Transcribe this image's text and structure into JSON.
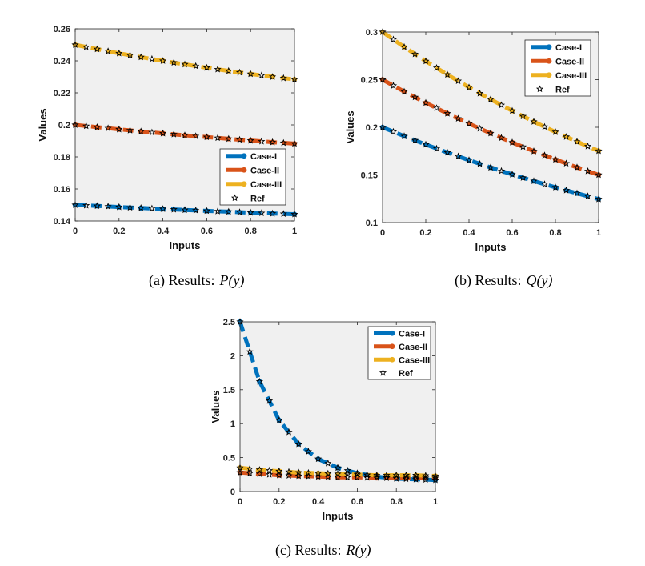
{
  "colors": {
    "case1": "#0072BD",
    "case2": "#D95319",
    "case3": "#EDB120",
    "ref": "#000000",
    "plot_bg": "#F0F0F0"
  },
  "legend_labels": [
    "Case-I",
    "Case-II",
    "Case-III",
    "Ref"
  ],
  "chart_data": [
    {
      "id": "P",
      "type": "line",
      "caption_prefix": "(a) Results:",
      "caption_fn": "P(y)",
      "xlabel": "Inputs",
      "ylabel": "Values",
      "xlim": [
        0,
        1
      ],
      "ylim": [
        0.14,
        0.26
      ],
      "xticks": [
        0,
        0.2,
        0.4,
        0.6,
        0.8,
        1
      ],
      "xtick_labels": [
        "0",
        "0.2",
        "0.4",
        "0.6",
        "0.8",
        "1"
      ],
      "yticks": [
        0.14,
        0.16,
        0.18,
        0.2,
        0.22,
        0.24,
        0.26
      ],
      "ytick_labels": [
        "0.14",
        "0.16",
        "0.18",
        "0.2",
        "0.22",
        "0.24",
        "0.26"
      ],
      "legend_position": "bottom-right",
      "ref_x": [
        0,
        0.05,
        0.1,
        0.15,
        0.2,
        0.25,
        0.3,
        0.35,
        0.4,
        0.45,
        0.5,
        0.55,
        0.6,
        0.65,
        0.7,
        0.75,
        0.8,
        0.85,
        0.9,
        0.95,
        1
      ],
      "series": [
        {
          "name": "Case-I",
          "x": [
            0,
            0.1,
            0.2,
            0.3,
            0.4,
            0.5,
            0.6,
            0.7,
            0.8,
            0.9,
            1
          ],
          "values": [
            0.15,
            0.1494,
            0.1487,
            0.1481,
            0.1475,
            0.1469,
            0.1463,
            0.1458,
            0.1452,
            0.1447,
            0.1442
          ]
        },
        {
          "name": "Case-II",
          "x": [
            0,
            0.1,
            0.2,
            0.3,
            0.4,
            0.5,
            0.6,
            0.7,
            0.8,
            0.9,
            1
          ],
          "values": [
            0.2,
            0.1986,
            0.1972,
            0.1959,
            0.1947,
            0.1935,
            0.1924,
            0.1913,
            0.1902,
            0.1892,
            0.1883
          ]
        },
        {
          "name": "Case-III",
          "x": [
            0,
            0.1,
            0.2,
            0.3,
            0.4,
            0.5,
            0.6,
            0.7,
            0.8,
            0.9,
            1
          ],
          "values": [
            0.25,
            0.2473,
            0.2447,
            0.2423,
            0.24,
            0.2378,
            0.2357,
            0.2337,
            0.2318,
            0.23,
            0.2284
          ]
        }
      ]
    },
    {
      "id": "Q",
      "type": "line",
      "caption_prefix": "(b) Results:",
      "caption_fn": "Q(y)",
      "xlabel": "Inputs",
      "ylabel": "Values",
      "xlim": [
        0,
        1
      ],
      "ylim": [
        0.1,
        0.3
      ],
      "xticks": [
        0,
        0.2,
        0.4,
        0.6,
        0.8,
        1
      ],
      "xtick_labels": [
        "0",
        "0.2",
        "0.4",
        "0.6",
        "0.8",
        "1"
      ],
      "yticks": [
        0.1,
        0.15,
        0.2,
        0.25,
        0.3
      ],
      "ytick_labels": [
        "0.1",
        "0.15",
        "0.2",
        "0.25",
        "0.3"
      ],
      "legend_position": "top-right",
      "ref_x": [
        0,
        0.05,
        0.1,
        0.15,
        0.2,
        0.25,
        0.3,
        0.35,
        0.4,
        0.45,
        0.5,
        0.55,
        0.6,
        0.65,
        0.7,
        0.75,
        0.8,
        0.85,
        0.9,
        0.95,
        1
      ],
      "series": [
        {
          "name": "Case-I",
          "x": [
            0,
            0.1,
            0.2,
            0.3,
            0.4,
            0.5,
            0.6,
            0.7,
            0.8,
            0.9,
            1
          ],
          "values": [
            0.2,
            0.1907,
            0.1819,
            0.1735,
            0.1655,
            0.1578,
            0.1505,
            0.1436,
            0.137,
            0.1307,
            0.1246
          ]
        },
        {
          "name": "Case-II",
          "x": [
            0,
            0.1,
            0.2,
            0.3,
            0.4,
            0.5,
            0.6,
            0.7,
            0.8,
            0.9,
            1
          ],
          "values": [
            0.25,
            0.2375,
            0.2257,
            0.2145,
            0.2038,
            0.1937,
            0.1841,
            0.1749,
            0.1662,
            0.1579,
            0.1501
          ]
        },
        {
          "name": "Case-III",
          "x": [
            0,
            0.1,
            0.2,
            0.3,
            0.4,
            0.5,
            0.6,
            0.7,
            0.8,
            0.9,
            1
          ],
          "values": [
            0.3,
            0.2843,
            0.2694,
            0.2553,
            0.2419,
            0.2293,
            0.2173,
            0.2059,
            0.1951,
            0.1849,
            0.1752
          ]
        }
      ]
    },
    {
      "id": "R",
      "type": "line",
      "caption_prefix": "(c) Results:",
      "caption_fn": "R(y)",
      "xlabel": "Inputs",
      "ylabel": "Values",
      "xlim": [
        0,
        1
      ],
      "ylim": [
        0,
        2.5
      ],
      "xticks": [
        0,
        0.2,
        0.4,
        0.6,
        0.8,
        1
      ],
      "xtick_labels": [
        "0",
        "0.2",
        "0.4",
        "0.6",
        "0.8",
        "1"
      ],
      "yticks": [
        0,
        0.5,
        1,
        1.5,
        2,
        2.5
      ],
      "ytick_labels": [
        "0",
        "0.5",
        "1",
        "1.5",
        "2",
        "2.5"
      ],
      "legend_position": "top-right",
      "ref_x": [
        0,
        0.05,
        0.1,
        0.15,
        0.2,
        0.25,
        0.3,
        0.35,
        0.4,
        0.45,
        0.5,
        0.55,
        0.6,
        0.65,
        0.7,
        0.75,
        0.8,
        0.85,
        0.9,
        0.95,
        1
      ],
      "series": [
        {
          "name": "Case-I",
          "x": [
            0,
            0.1,
            0.2,
            0.3,
            0.4,
            0.5,
            0.6,
            0.7,
            0.8,
            0.9,
            1
          ],
          "values": [
            2.5,
            1.62,
            1.05,
            0.7,
            0.48,
            0.35,
            0.27,
            0.22,
            0.19,
            0.18,
            0.17
          ]
        },
        {
          "name": "Case-II",
          "x": [
            0,
            0.1,
            0.2,
            0.3,
            0.4,
            0.5,
            0.6,
            0.7,
            0.8,
            0.9,
            1
          ],
          "values": [
            0.28,
            0.26,
            0.24,
            0.23,
            0.22,
            0.21,
            0.21,
            0.2,
            0.2,
            0.2,
            0.2
          ]
        },
        {
          "name": "Case-III",
          "x": [
            0,
            0.1,
            0.2,
            0.3,
            0.4,
            0.5,
            0.6,
            0.7,
            0.8,
            0.9,
            1
          ],
          "values": [
            0.35,
            0.32,
            0.3,
            0.28,
            0.27,
            0.26,
            0.25,
            0.24,
            0.24,
            0.24,
            0.23
          ]
        }
      ]
    }
  ]
}
